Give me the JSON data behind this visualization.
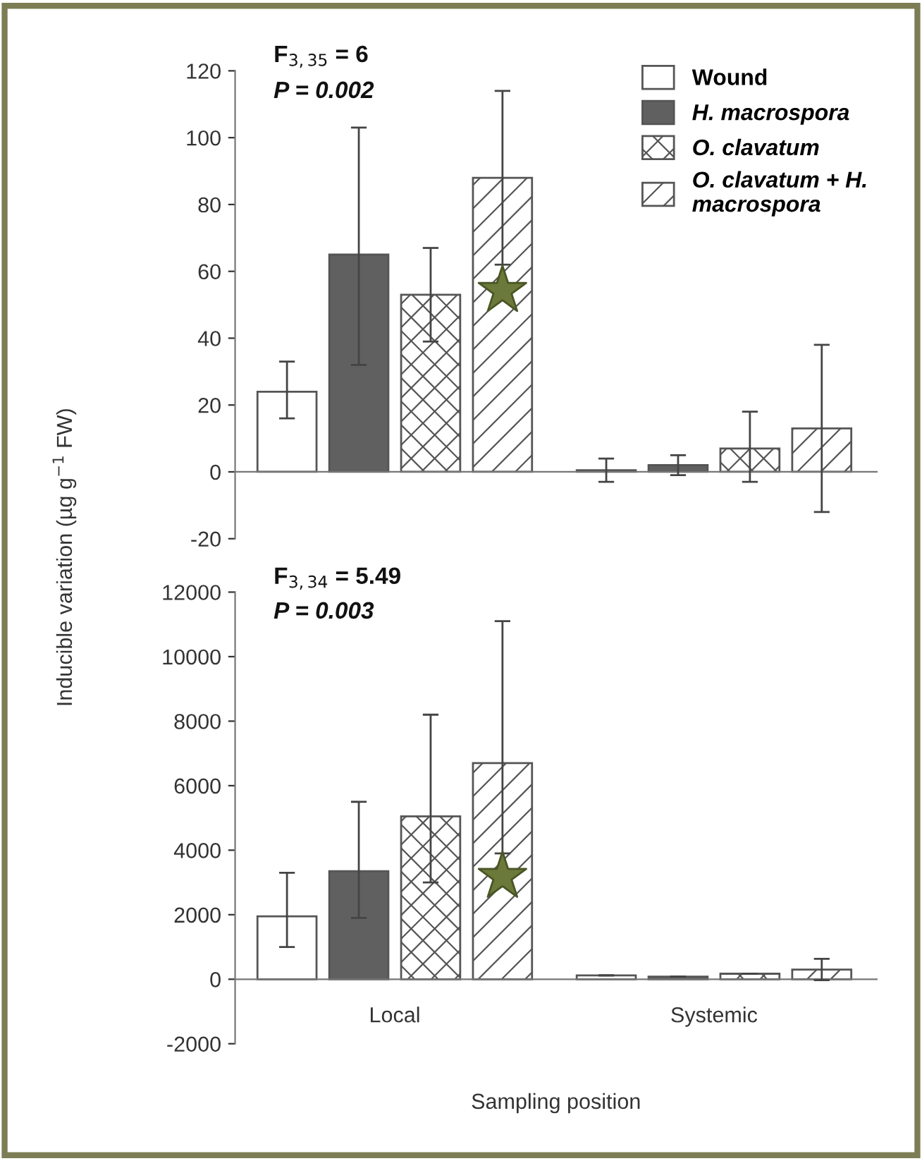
{
  "chart_data": [
    {
      "type": "bar",
      "categories": [
        null,
        null
      ],
      "ylabel": "Inducible variation (µg g$^{−1}$ FW)",
      "ylim": [
        -20,
        120
      ],
      "yticks": [
        -20,
        0,
        20,
        40,
        60,
        80,
        100,
        120
      ],
      "tick_labels": "y",
      "legend": "top right",
      "annotations": [
        "F$_{3,35}$ = 6",
        "P = 0.002"
      ],
      "series": [
        {
          "name": "Wound",
          "color": "#ffffff",
          "values": [
            24,
            0.5
          ],
          "errors": [
            [
              16,
              33
            ],
            [
              -3,
              4
            ]
          ]
        },
        {
          "name": "H. macrospora",
          "color": "#606060",
          "values": [
            65,
            2
          ],
          "errors": [
            [
              32,
              103
            ],
            [
              -1,
              5
            ]
          ]
        },
        {
          "name": "O. clavatum",
          "color": "#555555",
          "values": [
            53,
            7
          ],
          "errors": [
            [
              39,
              67
            ],
            [
              -3,
              18
            ]
          ]
        },
        {
          "name": "O. clavatum + H. macrospora",
          "color": "#555555",
          "values": [
            88,
            13
          ],
          "errors": [
            [
              62,
              114
            ],
            [
              -12,
              38
            ]
          ]
        }
      ]
    },
    {
      "type": "bar",
      "categories": [
        "Local",
        "Systemic"
      ],
      "xlabel": "Sampling position",
      "ylim": [
        -2000,
        12000
      ],
      "yticks": [
        -2000,
        0,
        2000,
        4000,
        6000,
        8000,
        10000,
        12000
      ],
      "annotations": [
        "F$_{3,34}$ = 5.49",
        "P = 0.003"
      ],
      "series": [
        {
          "color": "#ffffff",
          "values": [
            1950,
            120
          ],
          "errors": [
            [
              1000,
              3300
            ],
            null
          ]
        },
        {
          "color": "#606060",
          "values": [
            3350,
            80
          ],
          "errors": [
            [
              1900,
              5500
            ],
            null
          ]
        },
        {
          "color": "#555555",
          "values": [
            5050,
            170
          ],
          "errors": [
            [
              3000,
              8200
            ],
            null
          ]
        },
        {
          "color": "#555555",
          "values": [
            6700,
            300
          ],
          "errors": [
            [
              3900,
              11100
            ],
            330
          ]
        }
      ]
    }
  ]
}
